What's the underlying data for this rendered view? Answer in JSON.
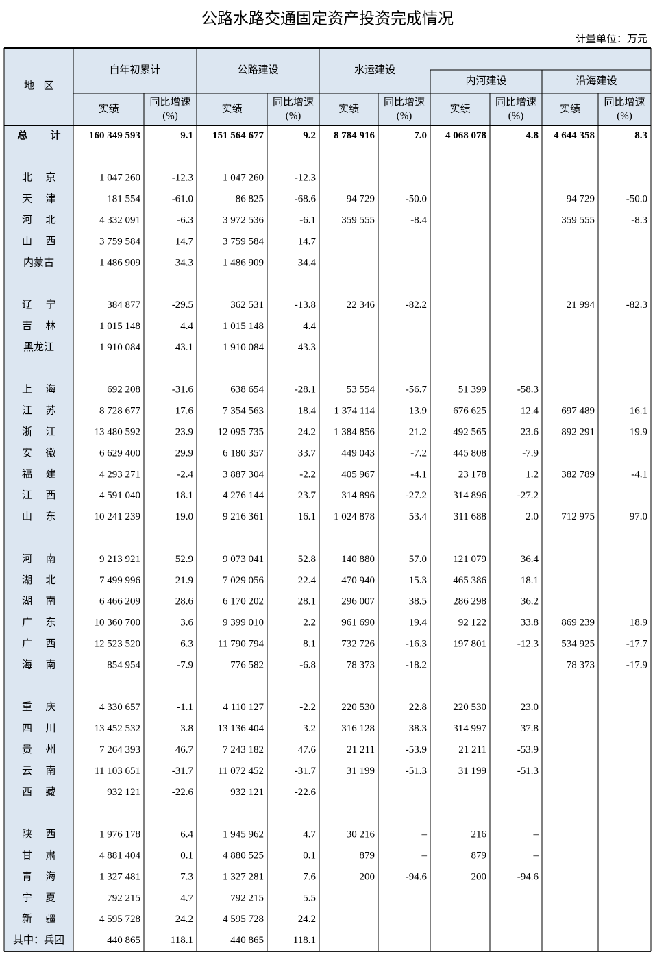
{
  "header": {
    "title": "公路水路交通固定资产投资完成情况",
    "unit": "计量单位：万元"
  },
  "table": {
    "region_header": "地区",
    "groups": [
      "自年初累计",
      "公路建设",
      "水运建设"
    ],
    "subgroups": [
      "内河建设",
      "沿海建设"
    ],
    "columns": [
      {
        "name": "实绩"
      },
      {
        "name": "同比增速",
        "unit": "(%)"
      },
      {
        "name": "实绩"
      },
      {
        "name": "同比增速",
        "unit": "(%)"
      },
      {
        "name": "实绩"
      },
      {
        "name": "同比增速",
        "unit": "(%)"
      },
      {
        "name": "实绩"
      },
      {
        "name": "同比增速",
        "unit": "(%)"
      },
      {
        "name": "实绩"
      },
      {
        "name": "同比增速",
        "unit": "(%)"
      }
    ],
    "total": [
      "总计",
      "160 349 593",
      "9.1",
      "151 564 677",
      "9.2",
      "8 784 916",
      "7.0",
      "4 068 078",
      "4.8",
      "4 644 358",
      "8.3"
    ],
    "sections": [
      [
        [
          "北京",
          "1 047 260",
          "-12.3",
          "1 047 260",
          "-12.3",
          null,
          null,
          null,
          null,
          null,
          null
        ],
        [
          "天津",
          "181 554",
          "-61.0",
          "86 825",
          "-68.6",
          "94 729",
          "-50.0",
          null,
          null,
          "94 729",
          "-50.0"
        ],
        [
          "河北",
          "4 332 091",
          "-6.3",
          "3 972 536",
          "-6.1",
          "359 555",
          "-8.4",
          null,
          null,
          "359 555",
          "-8.3"
        ],
        [
          "山西",
          "3 759 584",
          "14.7",
          "3 759 584",
          "14.7",
          null,
          null,
          null,
          null,
          null,
          null
        ],
        [
          "内蒙古",
          "1 486 909",
          "34.3",
          "1 486 909",
          "34.4",
          null,
          null,
          null,
          null,
          null,
          null
        ]
      ],
      [
        [
          "辽宁",
          "384 877",
          "-29.5",
          "362 531",
          "-13.8",
          "22 346",
          "-82.2",
          null,
          null,
          "21 994",
          "-82.3"
        ],
        [
          "吉林",
          "1 015 148",
          "4.4",
          "1 015 148",
          "4.4",
          null,
          null,
          null,
          null,
          null,
          null
        ],
        [
          "黑龙江",
          "1 910 084",
          "43.1",
          "1 910 084",
          "43.3",
          null,
          null,
          null,
          null,
          null,
          null
        ]
      ],
      [
        [
          "上海",
          "692 208",
          "-31.6",
          "638 654",
          "-28.1",
          "53 554",
          "-56.7",
          "51 399",
          "-58.3",
          null,
          null
        ],
        [
          "江苏",
          "8 728 677",
          "17.6",
          "7 354 563",
          "18.4",
          "1 374 114",
          "13.9",
          "676 625",
          "12.4",
          "697 489",
          "16.1"
        ],
        [
          "浙江",
          "13 480 592",
          "23.9",
          "12 095 735",
          "24.2",
          "1 384 856",
          "21.2",
          "492 565",
          "23.6",
          "892 291",
          "19.9"
        ],
        [
          "安徽",
          "6 629 400",
          "29.9",
          "6 180 357",
          "33.7",
          "449 043",
          "-7.2",
          "445 808",
          "-7.9",
          null,
          null
        ],
        [
          "福建",
          "4 293 271",
          "-2.4",
          "3 887 304",
          "-2.2",
          "405 967",
          "-4.1",
          "23 178",
          "1.2",
          "382 789",
          "-4.1"
        ],
        [
          "江西",
          "4 591 040",
          "18.1",
          "4 276 144",
          "23.7",
          "314 896",
          "-27.2",
          "314 896",
          "-27.2",
          null,
          null
        ],
        [
          "山东",
          "10 241 239",
          "19.0",
          "9 216 361",
          "16.1",
          "1 024 878",
          "53.4",
          "311 688",
          "2.0",
          "712 975",
          "97.0"
        ]
      ],
      [
        [
          "河南",
          "9 213 921",
          "52.9",
          "9 073 041",
          "52.8",
          "140 880",
          "57.0",
          "121 079",
          "36.4",
          null,
          null
        ],
        [
          "湖北",
          "7 499 996",
          "21.9",
          "7 029 056",
          "22.4",
          "470 940",
          "15.3",
          "465 386",
          "18.1",
          null,
          null
        ],
        [
          "湖南",
          "6 466 209",
          "28.6",
          "6 170 202",
          "28.1",
          "296 007",
          "38.5",
          "286 298",
          "36.2",
          null,
          null
        ],
        [
          "广东",
          "10 360 700",
          "3.6",
          "9 399 010",
          "2.2",
          "961 690",
          "19.4",
          "92 122",
          "33.8",
          "869 239",
          "18.9"
        ],
        [
          "广西",
          "12 523 520",
          "6.3",
          "11 790 794",
          "8.1",
          "732 726",
          "-16.3",
          "197 801",
          "-12.3",
          "534 925",
          "-17.7"
        ],
        [
          "海南",
          "854 954",
          "-7.9",
          "776 582",
          "-6.8",
          "78 373",
          "-18.2",
          null,
          null,
          "78 373",
          "-17.9"
        ]
      ],
      [
        [
          "重庆",
          "4 330 657",
          "-1.1",
          "4 110 127",
          "-2.2",
          "220 530",
          "22.8",
          "220 530",
          "23.0",
          null,
          null
        ],
        [
          "四川",
          "13 452 532",
          "3.8",
          "13 136 404",
          "3.2",
          "316 128",
          "38.3",
          "314 997",
          "37.8",
          null,
          null
        ],
        [
          "贵州",
          "7 264 393",
          "46.7",
          "7 243 182",
          "47.6",
          "21 211",
          "-53.9",
          "21 211",
          "-53.9",
          null,
          null
        ],
        [
          "云南",
          "11 103 651",
          "-31.7",
          "11 072 452",
          "-31.7",
          "31 199",
          "-51.3",
          "31 199",
          "-51.3",
          null,
          null
        ],
        [
          "西藏",
          "932 121",
          "-22.6",
          "932 121",
          "-22.6",
          null,
          null,
          null,
          null,
          null,
          null
        ]
      ],
      [
        [
          "陕西",
          "1 976 178",
          "6.4",
          "1 945 962",
          "4.7",
          "30 216",
          "–",
          "216",
          "–",
          null,
          null
        ],
        [
          "甘肃",
          "4 881 404",
          "0.1",
          "4 880 525",
          "0.1",
          "879",
          "–",
          "879",
          "–",
          null,
          null
        ],
        [
          "青海",
          "1 327 481",
          "7.3",
          "1 327 281",
          "7.6",
          "200",
          "-94.6",
          "200",
          "-94.6",
          null,
          null
        ],
        [
          "宁夏",
          "792 215",
          "4.7",
          "792 215",
          "5.5",
          null,
          null,
          null,
          null,
          null,
          null
        ],
        [
          "新疆",
          "4 595 728",
          "24.2",
          "4 595 728",
          "24.2",
          null,
          null,
          null,
          null,
          null,
          null
        ],
        [
          "其中：兵团",
          "440 865",
          "118.1",
          "440 865",
          "118.1",
          null,
          null,
          null,
          null,
          null,
          null
        ]
      ]
    ]
  }
}
